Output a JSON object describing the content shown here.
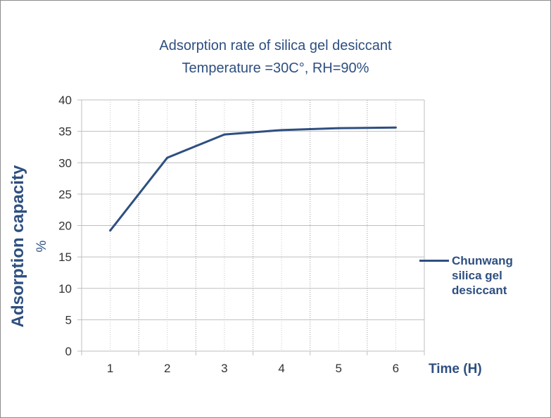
{
  "chart_data": {
    "type": "line",
    "title": "Adsorption rate of silica gel desiccant",
    "subtitle": "Temperature =30C°,   RH=90%",
    "xlabel": "Time (H)",
    "ylabel": "Adsorption capacity",
    "ylabel_unit": "%",
    "categories": [
      "1",
      "2",
      "3",
      "4",
      "5",
      "6"
    ],
    "series": [
      {
        "name": "Chunwang silica gel desiccant",
        "values": [
          19.2,
          30.8,
          34.5,
          35.2,
          35.5,
          35.6
        ],
        "color": "#2e4f80"
      }
    ],
    "ylim": [
      0,
      40
    ],
    "yticks": [
      0,
      5,
      10,
      15,
      20,
      25,
      30,
      35,
      40
    ],
    "grid": true,
    "legend_position": "right"
  }
}
